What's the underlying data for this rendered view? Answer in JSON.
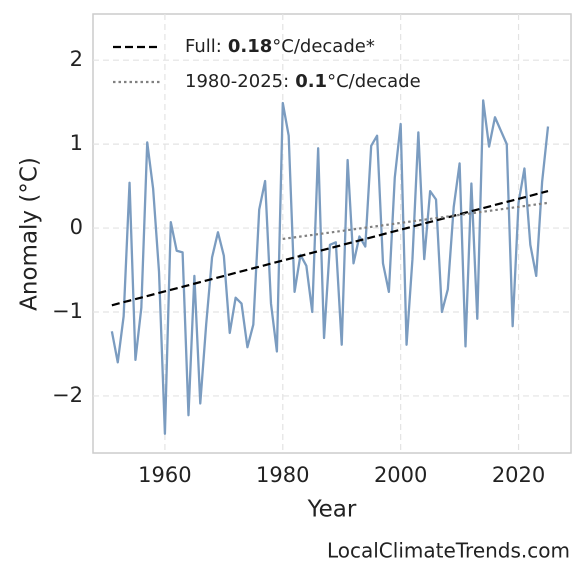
{
  "chart_data": {
    "type": "line",
    "xlabel": "Year",
    "ylabel": "Anomaly (°C)",
    "watermark": "LocalClimateTrends.com",
    "x": [
      1951,
      1952,
      1953,
      1954,
      1955,
      1956,
      1957,
      1958,
      1959,
      1960,
      1961,
      1962,
      1963,
      1964,
      1965,
      1966,
      1967,
      1968,
      1969,
      1970,
      1971,
      1972,
      1973,
      1974,
      1975,
      1976,
      1977,
      1978,
      1979,
      1980,
      1981,
      1982,
      1983,
      1984,
      1985,
      1986,
      1987,
      1988,
      1989,
      1990,
      1991,
      1992,
      1993,
      1994,
      1995,
      1996,
      1997,
      1998,
      1999,
      2000,
      2001,
      2002,
      2003,
      2004,
      2005,
      2006,
      2007,
      2008,
      2009,
      2010,
      2011,
      2012,
      2013,
      2014,
      2015,
      2016,
      2017,
      2018,
      2019,
      2020,
      2021,
      2022,
      2023,
      2024,
      2025
    ],
    "series": [
      {
        "color": "#7b9cc0",
        "values": [
          -1.23,
          -1.6,
          -1.05,
          0.54,
          -1.57,
          -0.95,
          1.02,
          0.47,
          -0.52,
          -2.45,
          0.07,
          -0.27,
          -0.29,
          -2.23,
          -0.57,
          -2.09,
          -1.15,
          -0.35,
          -0.05,
          -0.33,
          -1.25,
          -0.83,
          -0.9,
          -1.42,
          -1.15,
          0.22,
          0.56,
          -0.9,
          -1.47,
          1.49,
          1.1,
          -0.76,
          -0.32,
          -0.45,
          -1.0,
          0.95,
          -1.31,
          -0.2,
          -0.17,
          -1.39,
          0.81,
          -0.42,
          -0.1,
          -0.22,
          0.98,
          1.1,
          -0.42,
          -0.76,
          0.6,
          1.24,
          -1.39,
          -0.37,
          1.14,
          -0.37,
          0.44,
          0.34,
          -1.0,
          -0.73,
          0.25,
          0.77,
          -1.41,
          0.53,
          -1.08,
          1.52,
          0.97,
          1.32,
          1.16,
          1.0,
          -1.17,
          0.3,
          0.71,
          -0.2,
          -0.57,
          0.55,
          1.21
        ]
      }
    ],
    "trends": [
      {
        "name": "Full:",
        "rate": 0.18,
        "unit": "°C/decade*",
        "x": [
          1951,
          2025
        ],
        "values": [
          -0.92,
          0.44
        ],
        "color": "#000000",
        "style": "dashed"
      },
      {
        "name": "1980-2025:",
        "rate": 0.1,
        "unit": "°C/decade",
        "x": [
          1980,
          2025
        ],
        "values": [
          -0.13,
          0.3
        ],
        "color": "#808080",
        "style": "dotted"
      }
    ],
    "xlim": [
      1947.8,
      2028.9
    ],
    "xticks": [
      1960,
      1980,
      2000,
      2020
    ],
    "ylim": [
      -2.68,
      2.55
    ],
    "yticks": [
      {
        "value": -2,
        "label": "−2"
      },
      {
        "value": -1,
        "label": "−1"
      },
      0,
      1,
      2
    ],
    "grid": true
  }
}
